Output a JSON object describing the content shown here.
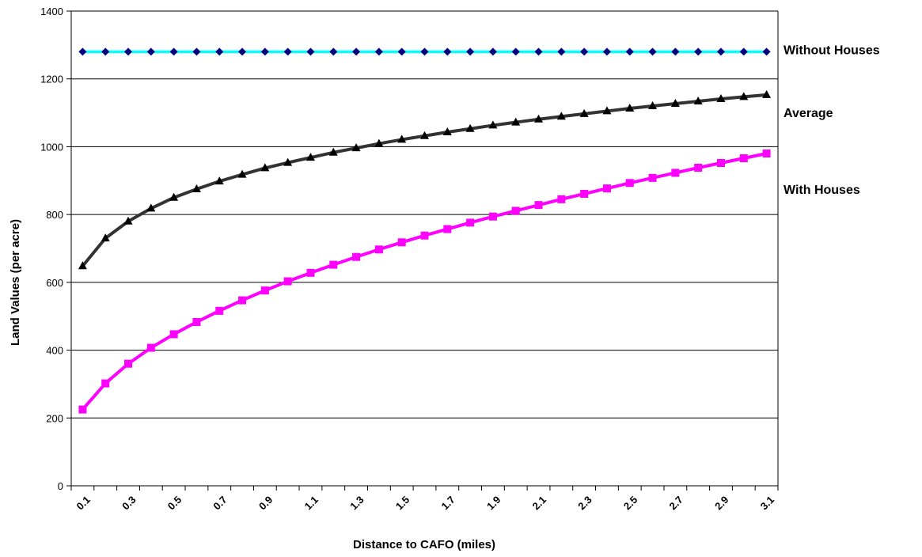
{
  "chart_data": {
    "type": "line",
    "title": "",
    "xlabel": "Distance to CAFO (miles)",
    "ylabel": "Land Values (per acre)",
    "ylim": [
      0,
      1400
    ],
    "yticks": [
      0,
      200,
      400,
      600,
      800,
      1000,
      1200,
      1400
    ],
    "xticks": [
      "0.1",
      "0.3",
      "0.5",
      "0.7",
      "0.9",
      "1.1",
      "1.3",
      "1.5",
      "1.7",
      "1.9",
      "2.1",
      "2.3",
      "2.5",
      "2.7",
      "2.9",
      "3.1"
    ],
    "grid": "horizontal",
    "x": [
      0.1,
      0.2,
      0.3,
      0.4,
      0.5,
      0.6,
      0.7,
      0.8,
      0.9,
      1.0,
      1.1,
      1.2,
      1.3,
      1.4,
      1.5,
      1.6,
      1.7,
      1.8,
      1.9,
      2.0,
      2.1,
      2.2,
      2.3,
      2.4,
      2.5,
      2.6,
      2.7,
      2.8,
      2.9,
      3.0,
      3.1
    ],
    "series": [
      {
        "name": "Without Houses",
        "color": "#00ffff",
        "marker_color": "#000080",
        "marker": "diamond",
        "values": [
          1280,
          1280,
          1280,
          1280,
          1280,
          1280,
          1280,
          1280,
          1280,
          1280,
          1280,
          1280,
          1280,
          1280,
          1280,
          1280,
          1280,
          1280,
          1280,
          1280,
          1280,
          1280,
          1280,
          1280,
          1280,
          1280,
          1280,
          1280,
          1280,
          1280,
          1280
        ]
      },
      {
        "name": "Average",
        "color": "#333333",
        "marker_color": "#000000",
        "marker": "triangle",
        "values": [
          648,
          730,
          780,
          818,
          850,
          875,
          898,
          918,
          937,
          953,
          968,
          983,
          996,
          1009,
          1021,
          1032,
          1043,
          1053,
          1063,
          1072,
          1081,
          1089,
          1097,
          1105,
          1113,
          1120,
          1127,
          1134,
          1141,
          1147,
          1153
        ]
      },
      {
        "name": "With Houses",
        "color": "#ff00ff",
        "marker_color": "#ff00ff",
        "marker": "square",
        "values": [
          225,
          302,
          360,
          407,
          447,
          483,
          516,
          547,
          576,
          603,
          628,
          652,
          675,
          697,
          718,
          738,
          757,
          776,
          794,
          811,
          828,
          845,
          861,
          877,
          893,
          908,
          923,
          938,
          952,
          966,
          980
        ]
      }
    ]
  }
}
